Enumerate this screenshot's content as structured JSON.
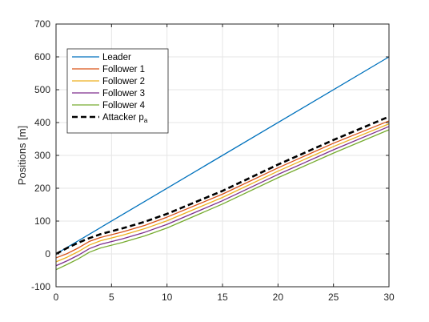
{
  "chart_data": {
    "type": "line",
    "title": "",
    "xlabel": "",
    "ylabel": "Positions [m]",
    "xlim": [
      0,
      30
    ],
    "ylim": [
      -100,
      700
    ],
    "xticks": [
      0,
      5,
      10,
      15,
      20,
      25,
      30
    ],
    "yticks": [
      -100,
      0,
      100,
      200,
      300,
      400,
      500,
      600,
      700
    ],
    "xtick_labels": [
      "0",
      "5",
      "10",
      "15",
      "20",
      "25",
      "30"
    ],
    "ytick_labels": [
      "-100",
      "0",
      "100",
      "200",
      "300",
      "400",
      "500",
      "600",
      "700"
    ],
    "grid": true,
    "legend_position": "top-left",
    "series": [
      {
        "name": "Leader",
        "color": "#0072BD",
        "dashed": false,
        "x": [
          0,
          30
        ],
        "y": [
          0,
          600
        ]
      },
      {
        "name": "Follower 1",
        "color": "#D95319",
        "dashed": false,
        "x": [
          0,
          1,
          2,
          3,
          4,
          6,
          8,
          10,
          15,
          20,
          25,
          30
        ],
        "y": [
          -12,
          1,
          18,
          38,
          50,
          67,
          87,
          112,
          182,
          262,
          337,
          405
        ]
      },
      {
        "name": "Follower 2",
        "color": "#EDB120",
        "dashed": false,
        "x": [
          0,
          1,
          2,
          3,
          4,
          6,
          8,
          10,
          15,
          20,
          25,
          30
        ],
        "y": [
          -24,
          -10,
          7,
          27,
          40,
          57,
          77,
          101,
          172,
          252,
          327,
          396
        ]
      },
      {
        "name": "Follower 3",
        "color": "#7E2F8E",
        "dashed": false,
        "x": [
          0,
          1,
          2,
          3,
          4,
          6,
          8,
          10,
          15,
          20,
          25,
          30
        ],
        "y": [
          -36,
          -21,
          -4,
          16,
          29,
          46,
          66,
          90,
          162,
          242,
          317,
          388
        ]
      },
      {
        "name": "Follower 4",
        "color": "#77AC30",
        "dashed": false,
        "x": [
          0,
          1,
          2,
          3,
          4,
          6,
          8,
          10,
          15,
          20,
          25,
          30
        ],
        "y": [
          -48,
          -32,
          -15,
          5,
          18,
          35,
          55,
          79,
          152,
          232,
          307,
          378
        ]
      },
      {
        "name": "Attacker p",
        "name_subscript": "a",
        "color": "#000000",
        "dashed": true,
        "x": [
          0,
          1,
          2,
          3,
          4,
          6,
          8,
          10,
          15,
          20,
          25,
          30
        ],
        "y": [
          0,
          18,
          34,
          48,
          60,
          78,
          98,
          122,
          192,
          272,
          347,
          418
        ]
      }
    ]
  }
}
